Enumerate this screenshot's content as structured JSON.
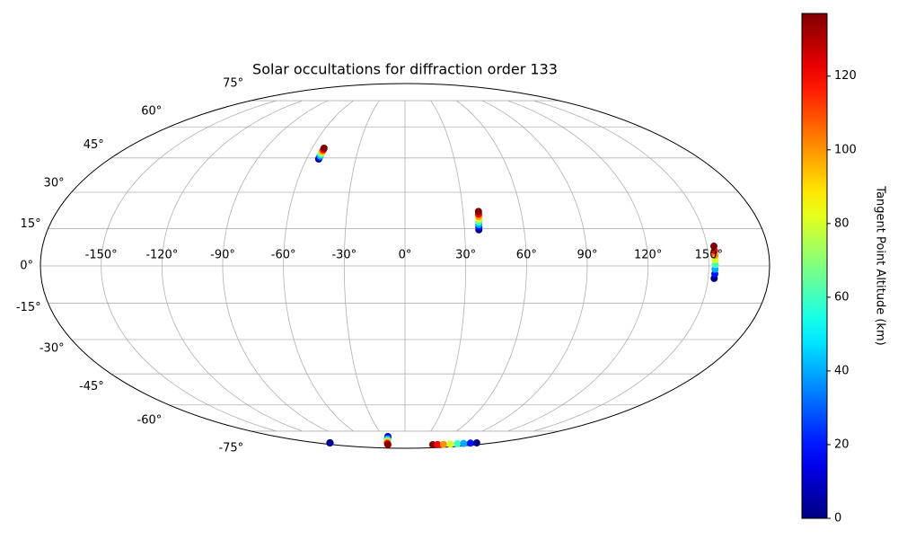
{
  "chart_data": {
    "type": "scatter",
    "projection": "mollweide",
    "title": "Solar occultations for diffraction order 133",
    "xticks": [
      {
        "value": -150,
        "label": "-150°"
      },
      {
        "value": -120,
        "label": "-120°"
      },
      {
        "value": -90,
        "label": "-90°"
      },
      {
        "value": -60,
        "label": "-60°"
      },
      {
        "value": -30,
        "label": "-30°"
      },
      {
        "value": 0,
        "label": "0°"
      },
      {
        "value": 30,
        "label": "30°"
      },
      {
        "value": 60,
        "label": "60°"
      },
      {
        "value": 90,
        "label": "90°"
      },
      {
        "value": 120,
        "label": "120°"
      },
      {
        "value": 150,
        "label": "150°"
      }
    ],
    "yticks": [
      {
        "value": -75,
        "label": "-75°"
      },
      {
        "value": -60,
        "label": "-60°"
      },
      {
        "value": -45,
        "label": "-45°"
      },
      {
        "value": -30,
        "label": "-30°"
      },
      {
        "value": -15,
        "label": "-15°"
      },
      {
        "value": 0,
        "label": "0°"
      },
      {
        "value": 15,
        "label": "15°"
      },
      {
        "value": 30,
        "label": "30°"
      },
      {
        "value": 45,
        "label": "45°"
      },
      {
        "value": 60,
        "label": "60°"
      },
      {
        "value": 75,
        "label": "75°"
      }
    ],
    "grid": true,
    "cmap": "jet",
    "clim": [
      0,
      137
    ],
    "cticks": [
      0,
      20,
      40,
      60,
      80,
      100,
      120
    ],
    "clabel": "Tangent Point Altitude (km)",
    "series": [
      {
        "x": [
          -52.6,
          -52.6,
          -52.5,
          -52.5,
          -52.4,
          -52.4,
          -52.3,
          -52.3
        ],
        "y": [
          44.5,
          45.2,
          45.9,
          46.7,
          47.4,
          48.1,
          48.8,
          49.5
        ],
        "values": [
          0,
          20,
          40,
          60,
          80,
          100,
          120,
          137
        ]
      },
      {
        "x": [
          37.2,
          37.3,
          37.4,
          37.5,
          37.7,
          37.8,
          37.9,
          38.0
        ],
        "y": [
          14.5,
          15.6,
          16.6,
          17.7,
          18.8,
          19.9,
          20.9,
          22.0
        ],
        "values": [
          0,
          20,
          40,
          60,
          80,
          100,
          120,
          137
        ]
      },
      {
        "x": [
          153.0,
          153.1,
          153.1,
          153.2,
          153.2,
          153.3,
          153.3,
          153.4
        ],
        "y": [
          -5.0,
          -3.2,
          -1.3,
          0.5,
          2.4,
          4.2,
          6.1,
          7.9
        ],
        "values": [
          0,
          20,
          40,
          60,
          80,
          100,
          120,
          137
        ]
      },
      {
        "x": [
          -24,
          -25.5,
          -27.5,
          -29.5,
          -32,
          -35,
          -38.5,
          -42.5
        ],
        "y": [
          -78.7,
          -79.6,
          -80.5,
          -81.5,
          -82.4,
          -83.4,
          -84.3,
          -85.3
        ],
        "values": [
          0,
          20,
          40,
          60,
          80,
          100,
          120,
          137
        ]
      },
      {
        "x": [
          69,
          80,
          92,
          104,
          116,
          127,
          137,
          147
        ],
        "y": [
          -85.3,
          -85.2,
          -85.0,
          -84.7,
          -84.4,
          -84.2,
          -83.9,
          -83.7
        ],
        "values": [
          137,
          120,
          100,
          80,
          60,
          40,
          20,
          0
        ]
      },
      {
        "x": [
          -154,
          -152
        ],
        "y": [
          -83.7,
          -83.6
        ],
        "values": [
          0,
          3
        ]
      }
    ]
  }
}
